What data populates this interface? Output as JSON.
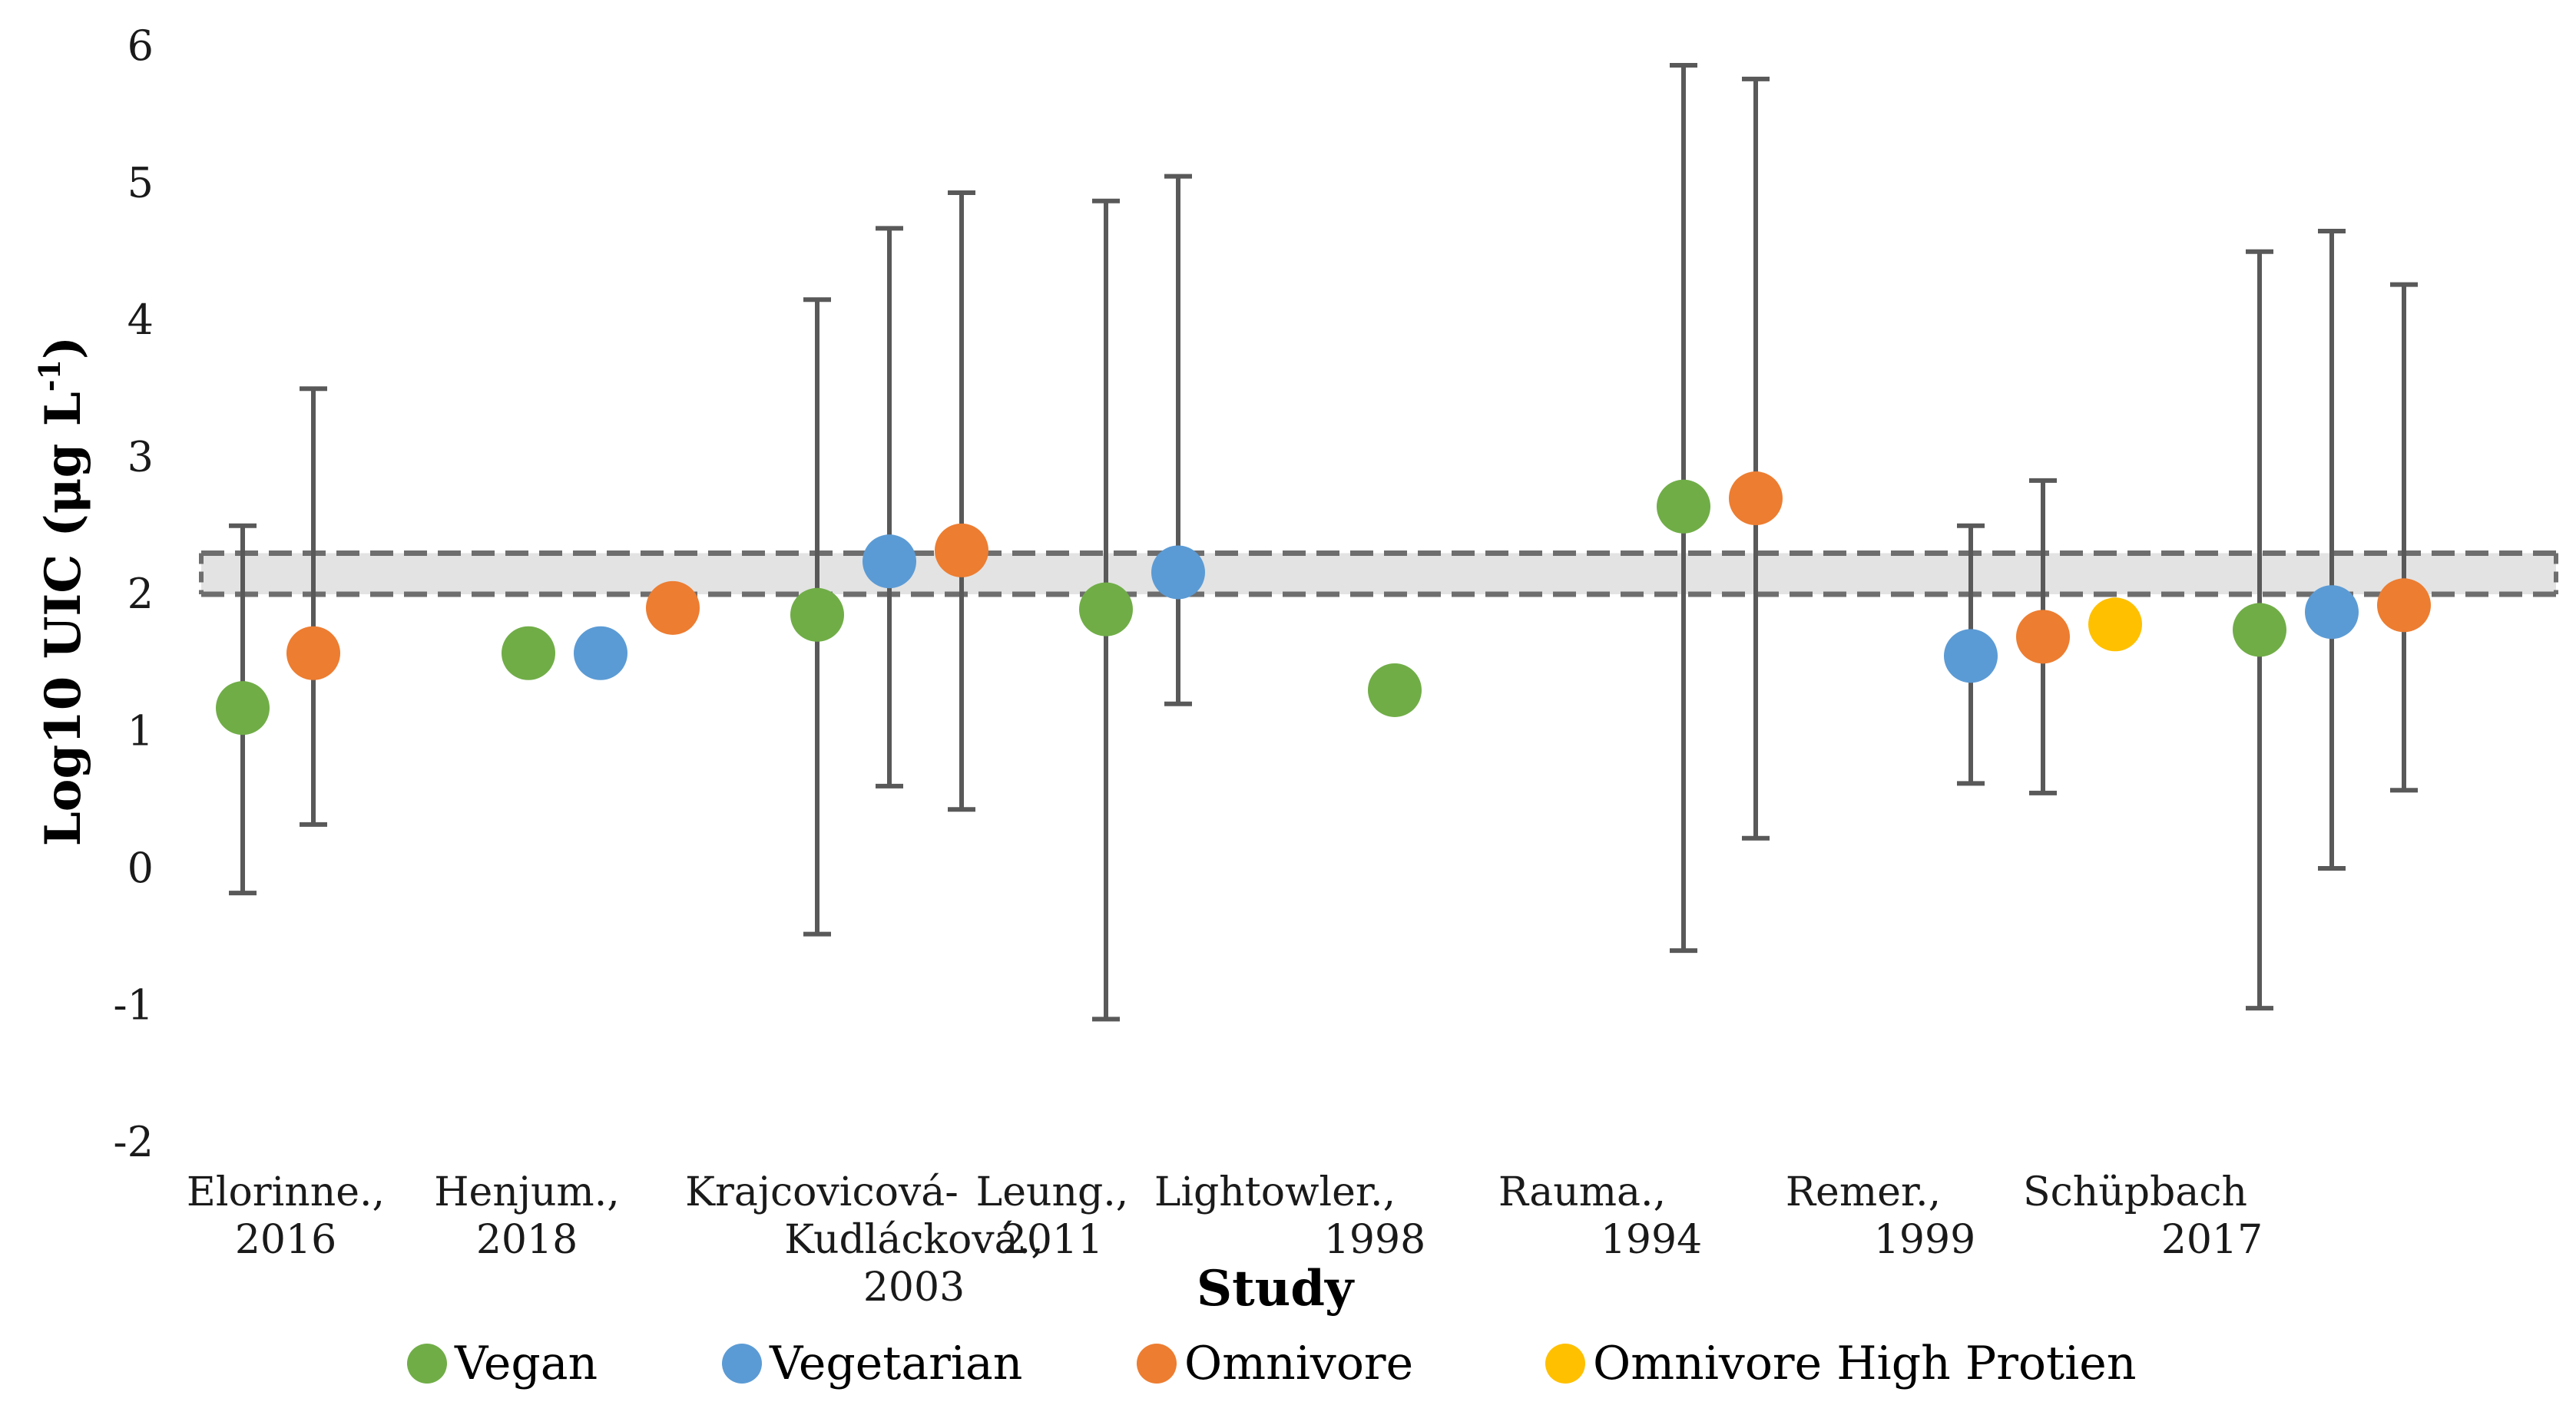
{
  "chart_data": {
    "type": "scatter",
    "ylabel_main": "Log10 UIC (μg L",
    "ylabel_sup": "-1",
    "ylabel_end": ")",
    "xlabel": "Study",
    "ylim": [
      -2,
      6
    ],
    "yticks": [
      -2,
      -1,
      0,
      1,
      2,
      3,
      4,
      5,
      6
    ],
    "reference_band": [
      2.0,
      2.3
    ],
    "categories": [
      [
        "Elorinne.,",
        "2016"
      ],
      [
        "Henjum.,",
        "2018"
      ],
      [
        "Krajcovicová-",
        "Kudlácková.,",
        "2003"
      ],
      [
        "Leung.,",
        "2011"
      ],
      [
        "Lightowler.,",
        "1998"
      ],
      [
        "Rauma.,",
        "1994"
      ],
      [
        "Remer.,",
        "1999"
      ],
      [
        "Schüpbach",
        "2017"
      ]
    ],
    "series_colors": {
      "Vegan": "#70ad47",
      "Vegetarian": "#5b9bd5",
      "Omnivore": "#ed7d31",
      "Omnivore High Protien": "#ffc000"
    },
    "points": [
      {
        "study": "Elorinne., 2016",
        "series": "Vegan",
        "y": 1.17,
        "low": -0.18,
        "high": 2.5
      },
      {
        "study": "Elorinne., 2016",
        "series": "Omnivore",
        "y": 1.57,
        "low": 0.32,
        "high": 3.5
      },
      {
        "study": "Henjum., 2018",
        "series": "Vegan",
        "y": 1.57
      },
      {
        "study": "Henjum., 2018",
        "series": "Vegetarian",
        "y": 1.57
      },
      {
        "study": "Henjum., 2018",
        "series": "Omnivore",
        "y": 1.9
      },
      {
        "study": "Krajcovicová-Kudlácková., 2003",
        "series": "Vegan",
        "y": 1.85,
        "low": -0.48,
        "high": 4.15
      },
      {
        "study": "Krajcovicová-Kudlácková., 2003",
        "series": "Vegetarian",
        "y": 2.24,
        "low": 0.6,
        "high": 4.67
      },
      {
        "study": "Krajcovicová-Kudlácková., 2003",
        "series": "Omnivore",
        "y": 2.32,
        "low": 0.43,
        "high": 4.93
      },
      {
        "study": "Leung., 2011",
        "series": "Vegan",
        "y": 1.89,
        "low": -1.1,
        "high": 4.87
      },
      {
        "study": "Leung., 2011",
        "series": "Vegetarian",
        "y": 2.16,
        "low": 1.2,
        "high": 5.05
      },
      {
        "study": "Lightowler., 1998",
        "series": "Vegan",
        "y": 1.3
      },
      {
        "study": "Rauma., 1994",
        "series": "Vegan",
        "y": 2.64,
        "low": -0.6,
        "high": 5.86
      },
      {
        "study": "Rauma., 1994",
        "series": "Omnivore",
        "y": 2.7,
        "low": 0.22,
        "high": 5.76
      },
      {
        "study": "Remer., 1999",
        "series": "Vegetarian",
        "y": 1.55,
        "low": 0.62,
        "high": 2.5
      },
      {
        "study": "Remer., 1999",
        "series": "Omnivore",
        "y": 1.69,
        "low": 0.55,
        "high": 2.83
      },
      {
        "study": "Remer., 1999",
        "series": "Omnivore High Protien",
        "y": 1.78
      },
      {
        "study": "Schüpbach 2017",
        "series": "Vegan",
        "y": 1.74,
        "low": -1.02,
        "high": 4.5
      },
      {
        "study": "Schüpbach 2017",
        "series": "Vegetarian",
        "y": 1.87,
        "low": 0.0,
        "high": 4.65
      },
      {
        "study": "Schüpbach 2017",
        "series": "Omnivore",
        "y": 1.92,
        "low": 0.57,
        "high": 4.26
      }
    ],
    "legend": [
      "Vegan",
      "Vegetarian",
      "Omnivore",
      "Omnivore High Protien"
    ],
    "legend_position": "bottom"
  }
}
